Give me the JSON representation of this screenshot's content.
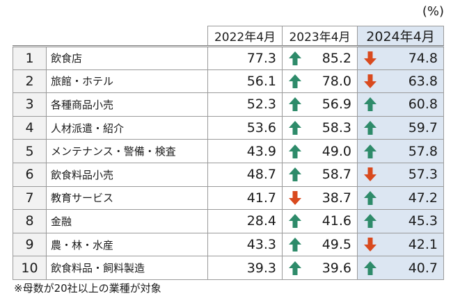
{
  "unit_label": "(%)",
  "headers": [
    "2022年4月",
    "2023年4月",
    "2024年4月"
  ],
  "colors": {
    "up": "#2e8b6a",
    "down": "#d94a1e",
    "highlight_column": "#dce6f2",
    "rank_column": "#f2f2f2"
  },
  "rows": [
    {
      "rank": "1",
      "industry": "飲食店",
      "v2022": "77.3",
      "v2023": "85.2",
      "a2023": "up",
      "v2024": "74.8",
      "a2024": "down"
    },
    {
      "rank": "2",
      "industry": "旅館・ホテル",
      "v2022": "56.1",
      "v2023": "78.0",
      "a2023": "up",
      "v2024": "63.8",
      "a2024": "down"
    },
    {
      "rank": "3",
      "industry": "各種商品小売",
      "v2022": "52.3",
      "v2023": "56.9",
      "a2023": "up",
      "v2024": "60.8",
      "a2024": "up"
    },
    {
      "rank": "4",
      "industry": "人材派遣・紹介",
      "v2022": "53.6",
      "v2023": "58.3",
      "a2023": "up",
      "v2024": "59.7",
      "a2024": "up"
    },
    {
      "rank": "5",
      "industry": "メンテナンス・警備・検査",
      "v2022": "43.9",
      "v2023": "49.0",
      "a2023": "up",
      "v2024": "57.8",
      "a2024": "up"
    },
    {
      "rank": "6",
      "industry": "飲食料品小売",
      "v2022": "48.7",
      "v2023": "58.7",
      "a2023": "up",
      "v2024": "57.3",
      "a2024": "down"
    },
    {
      "rank": "7",
      "industry": "教育サービス",
      "v2022": "41.7",
      "v2023": "38.7",
      "a2023": "down",
      "v2024": "47.2",
      "a2024": "up"
    },
    {
      "rank": "8",
      "industry": "金融",
      "v2022": "28.4",
      "v2023": "41.6",
      "a2023": "up",
      "v2024": "45.3",
      "a2024": "up"
    },
    {
      "rank": "9",
      "industry": "農・林・水産",
      "v2022": "43.3",
      "v2023": "49.5",
      "a2023": "up",
      "v2024": "42.1",
      "a2024": "down"
    },
    {
      "rank": "10",
      "industry": "飲食料品・飼料製造",
      "v2022": "39.3",
      "v2023": "39.6",
      "a2023": "up",
      "v2024": "40.7",
      "a2024": "up"
    }
  ],
  "note": "※母数が20社以上の業種が対象"
}
